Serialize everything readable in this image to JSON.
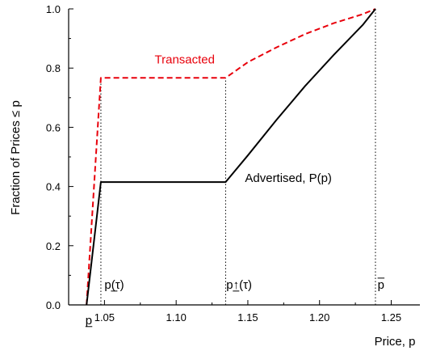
{
  "chart_data": {
    "type": "line",
    "xlabel": "Price, p",
    "ylabel": "Fraction of Prices ≤ p",
    "xlim": [
      1.025,
      1.27
    ],
    "ylim": [
      0,
      1.0
    ],
    "x_ticks": [
      1.05,
      1.1,
      1.15,
      1.2,
      1.25
    ],
    "x_tick_labels": [
      "1.05",
      "1.10",
      "1.15",
      "1.20",
      "1.25"
    ],
    "y_ticks": [
      0.0,
      0.2,
      0.4,
      0.6,
      0.8,
      1.0
    ],
    "y_tick_labels": [
      "0.0",
      "0.2",
      "0.4",
      "0.6",
      "0.8",
      "1.0"
    ],
    "grid": false,
    "series": [
      {
        "name": "Transacted",
        "color": "#e8000b",
        "style": "dashed",
        "points": [
          [
            1.0375,
            0.0
          ],
          [
            1.0475,
            0.767
          ],
          [
            1.1345,
            0.767
          ],
          [
            1.15,
            0.82
          ],
          [
            1.17,
            0.87
          ],
          [
            1.19,
            0.915
          ],
          [
            1.21,
            0.952
          ],
          [
            1.23,
            0.982
          ],
          [
            1.239,
            1.0
          ]
        ]
      },
      {
        "name": "Advertised, P(p)",
        "color": "#000000",
        "style": "solid",
        "points": [
          [
            1.0375,
            0.0
          ],
          [
            1.0475,
            0.415
          ],
          [
            1.1345,
            0.415
          ],
          [
            1.15,
            0.505
          ],
          [
            1.17,
            0.625
          ],
          [
            1.19,
            0.74
          ],
          [
            1.21,
            0.845
          ],
          [
            1.23,
            0.945
          ],
          [
            1.239,
            1.0
          ]
        ]
      }
    ],
    "reference_lines": [
      {
        "x": 1.0475,
        "y_top": 0.767
      },
      {
        "x": 1.1345,
        "y_top": 0.767
      },
      {
        "x": 1.239,
        "y_top": 1.0
      }
    ],
    "annotations": [
      {
        "text": "Transacted",
        "x": 1.085,
        "y": 0.815,
        "color": "#e8000b"
      },
      {
        "text": "Advertised, P(p)",
        "x": 1.148,
        "y": 0.415,
        "color": "#000000"
      },
      {
        "text": "p(τ)",
        "x": 1.05,
        "y": 0.055,
        "color": "#000000",
        "underline": true
      },
      {
        "text": "p↑(τ)",
        "x": 1.135,
        "y": 0.055,
        "color": "#000000",
        "underline": true
      },
      {
        "text": "p",
        "x": 1.2405,
        "y": 0.055,
        "color": "#000000",
        "overline": true
      },
      {
        "text": "p",
        "x": 1.0367,
        "y": -0.065,
        "color": "#000000",
        "underline": true
      }
    ]
  }
}
